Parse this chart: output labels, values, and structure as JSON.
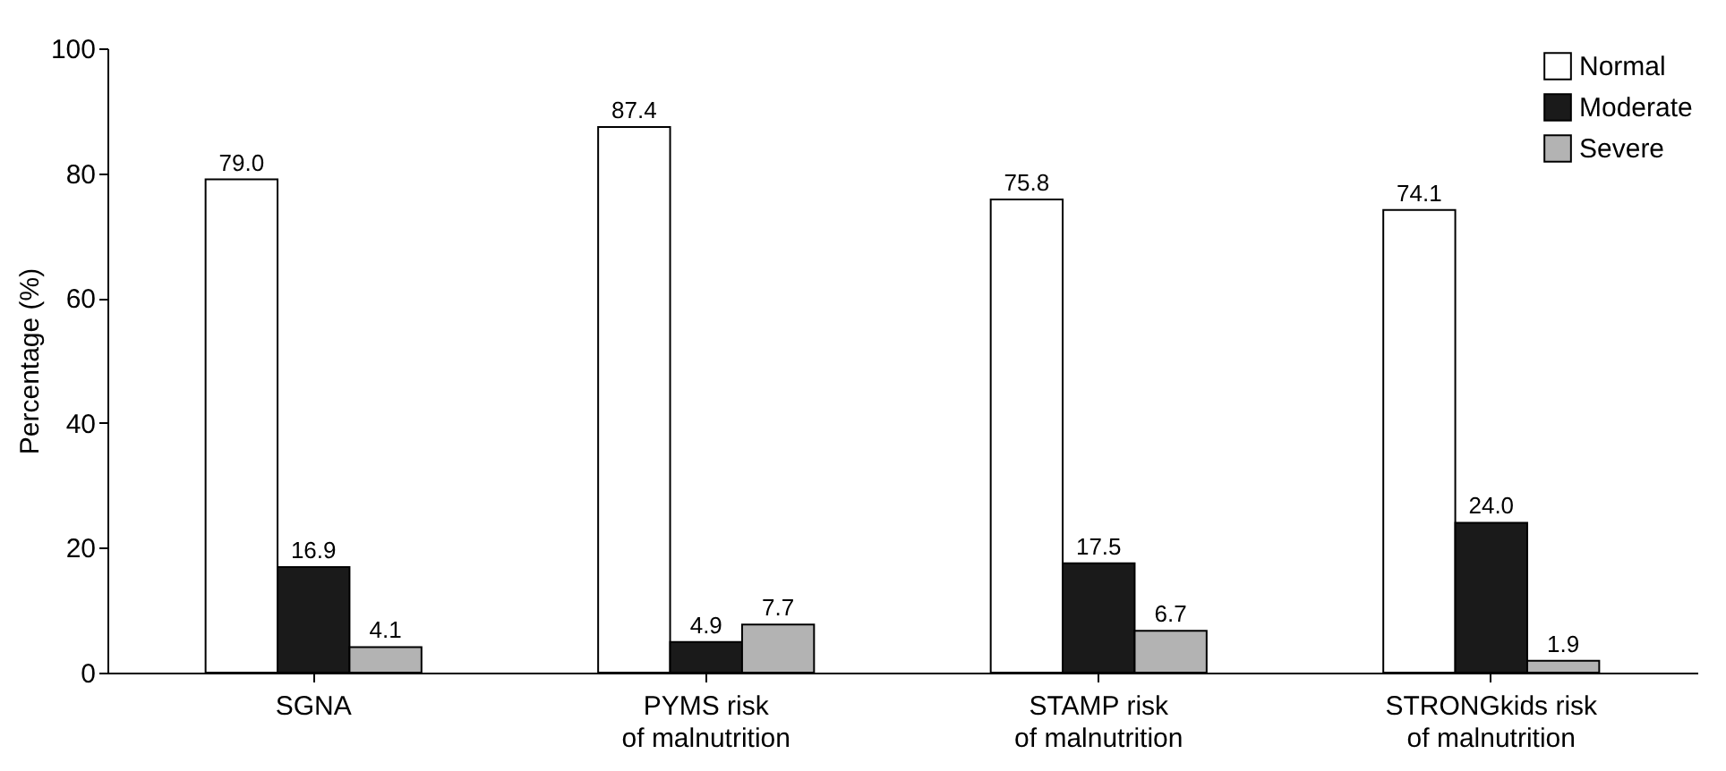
{
  "chart_data": {
    "type": "bar",
    "ylabel": "Percentage (%)",
    "categories": [
      "SGNA",
      "PYMS risk\nof malnutrition",
      "STAMP risk\nof malnutrition",
      "STRONGkids risk\nof malnutrition"
    ],
    "series": [
      {
        "name": "Normal",
        "color": "#ffffff",
        "values": [
          79.0,
          87.4,
          75.8,
          74.1
        ],
        "value_labels": [
          "79.0",
          "87.4",
          "75.8",
          "74.1"
        ]
      },
      {
        "name": "Moderate",
        "color": "#1a1a1a",
        "values": [
          16.9,
          4.9,
          17.5,
          24.0
        ],
        "value_labels": [
          "16.9",
          "4.9",
          "17.5",
          "24.0"
        ]
      },
      {
        "name": "Severe",
        "color": "#b3b3b3",
        "values": [
          4.1,
          7.7,
          6.7,
          1.9
        ],
        "value_labels": [
          "4.1",
          "7.7",
          "6.7",
          "1.9"
        ]
      }
    ],
    "ylim": [
      0,
      100
    ],
    "yticks": [
      0,
      20,
      40,
      60,
      80,
      100
    ],
    "grid": false,
    "legend": "top right"
  }
}
